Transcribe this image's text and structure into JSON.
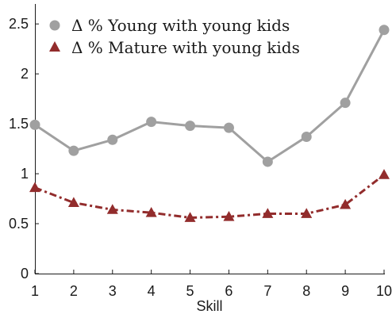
{
  "chart_data": {
    "type": "line",
    "x": [
      1,
      2,
      3,
      4,
      5,
      6,
      7,
      8,
      9,
      10
    ],
    "xlabel": "Skill",
    "ylabel": "",
    "xlim": [
      1,
      10
    ],
    "ylim": [
      0,
      2.7
    ],
    "xticks": [
      "1",
      "2",
      "3",
      "4",
      "5",
      "6",
      "7",
      "8",
      "9",
      "10"
    ],
    "yticks": [
      "0",
      "0.5",
      "1",
      "1.5",
      "2",
      "2.5"
    ],
    "ytick_values": [
      0,
      0.5,
      1,
      1.5,
      2,
      2.5
    ],
    "grid": false,
    "legend_position": "top-left",
    "series": [
      {
        "name": "Δ % Young with young kids",
        "values": [
          1.49,
          1.23,
          1.34,
          1.52,
          1.48,
          1.46,
          1.12,
          1.37,
          1.71,
          2.44
        ],
        "color": "#a0a0a0",
        "line_style": "solid",
        "marker": "circle"
      },
      {
        "name": "Δ % Mature with young kids",
        "values": [
          0.86,
          0.71,
          0.64,
          0.61,
          0.56,
          0.57,
          0.6,
          0.6,
          0.69,
          0.99
        ],
        "color": "#922c2c",
        "line_style": "dash-dot",
        "marker": "triangle"
      }
    ]
  }
}
